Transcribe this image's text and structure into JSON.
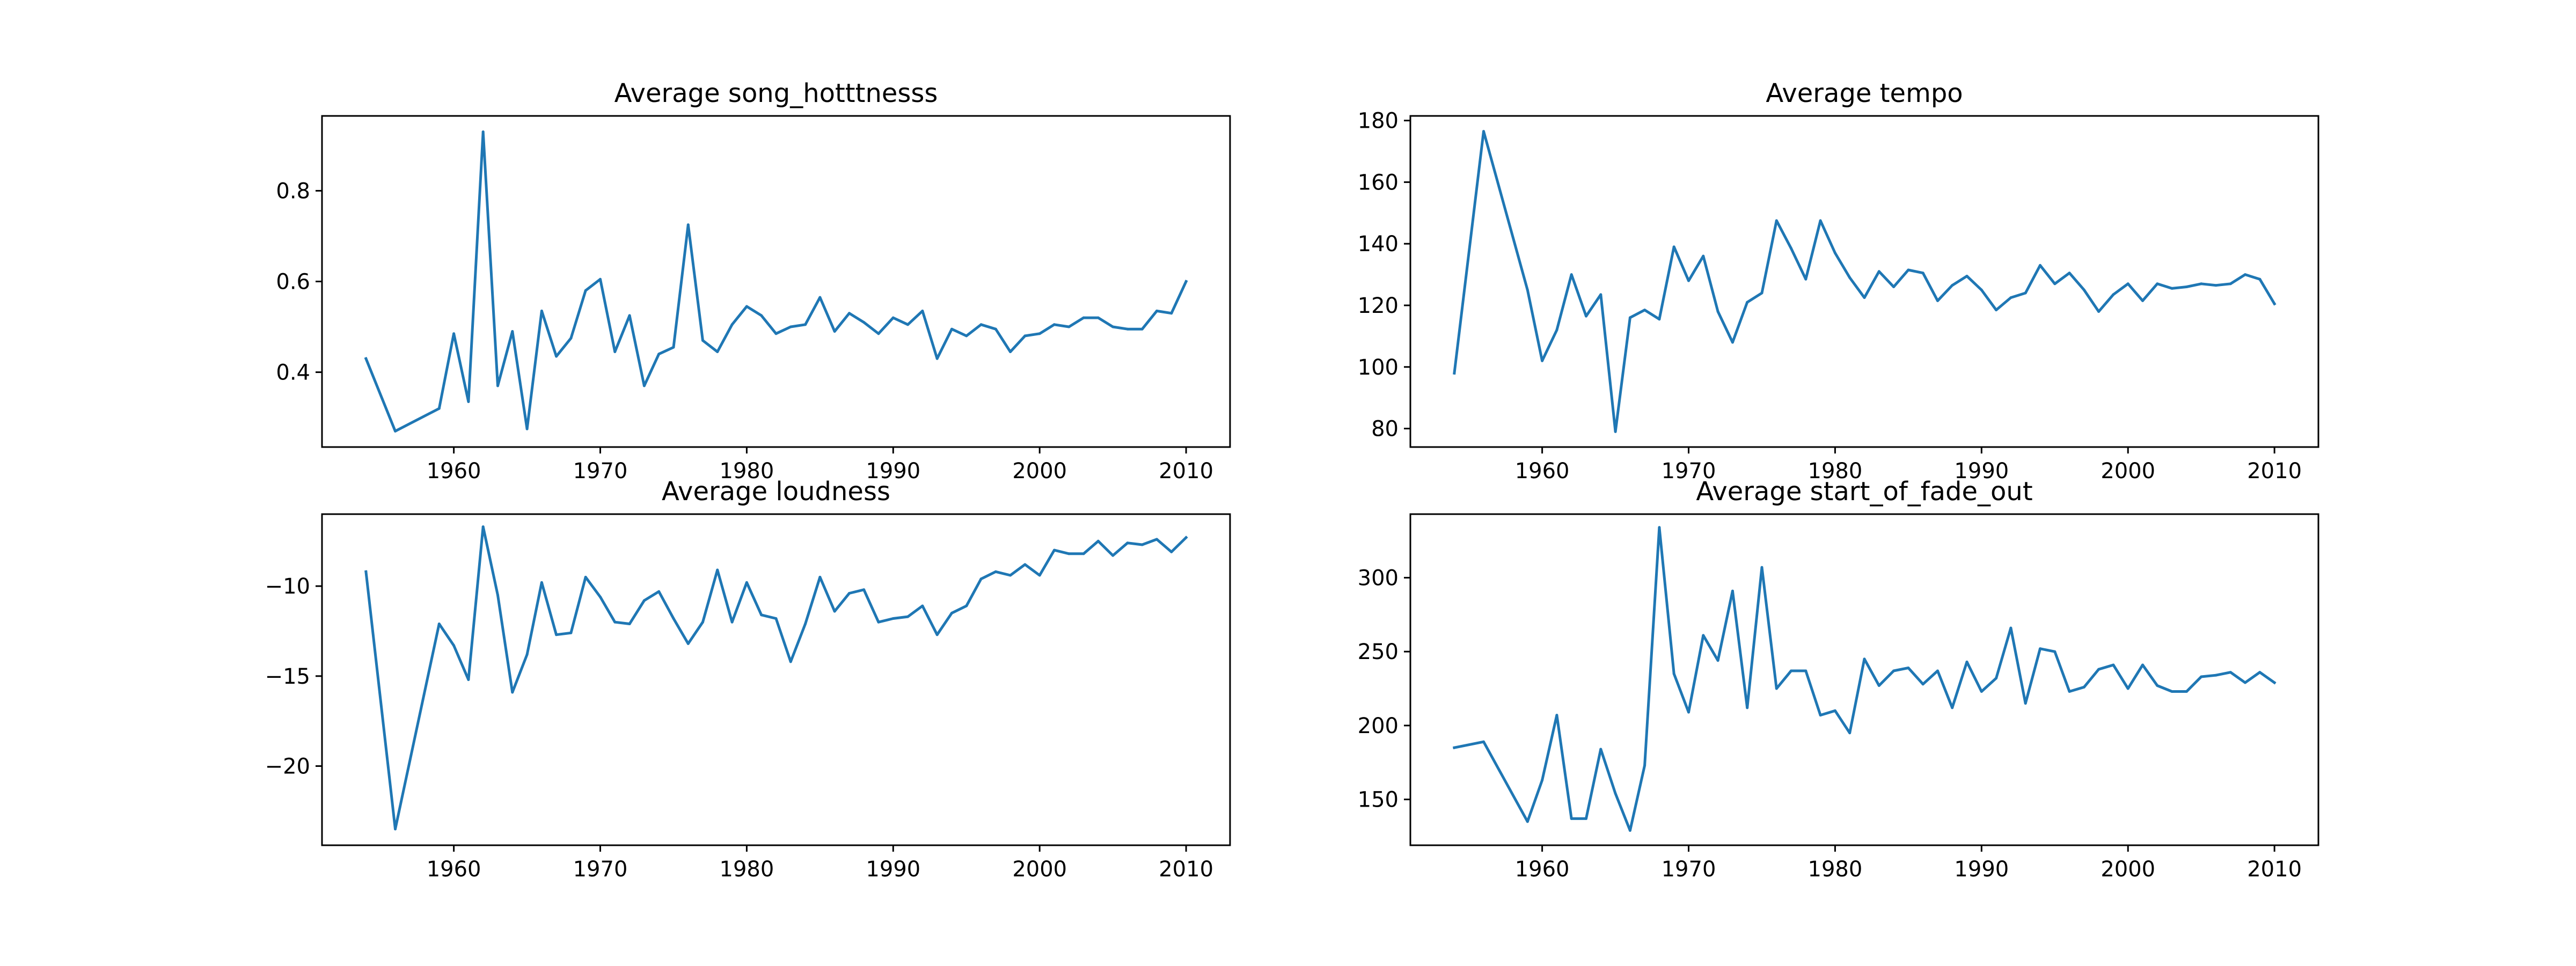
{
  "chart_data": [
    {
      "type": "line",
      "title": "Average song_hotttnesss",
      "xlabel": "",
      "ylabel": "",
      "xlim": [
        1951,
        2013
      ],
      "ylim": [
        0.235,
        0.965
      ],
      "xticks": [
        1960,
        1970,
        1980,
        1990,
        2000,
        2010
      ],
      "yticks": [
        0.4,
        0.6,
        0.8
      ],
      "yticklabels": [
        "0.4",
        "0.6",
        "0.8"
      ],
      "grid": false,
      "color": "#1f77b4",
      "x": [
        1954,
        1956,
        1959,
        1960,
        1961,
        1962,
        1963,
        1964,
        1965,
        1966,
        1967,
        1968,
        1969,
        1970,
        1971,
        1972,
        1973,
        1974,
        1975,
        1976,
        1977,
        1978,
        1979,
        1980,
        1981,
        1982,
        1983,
        1984,
        1985,
        1986,
        1987,
        1988,
        1989,
        1990,
        1991,
        1992,
        1993,
        1994,
        1995,
        1996,
        1997,
        1998,
        1999,
        2000,
        2001,
        2002,
        2003,
        2004,
        2005,
        2006,
        2007,
        2008,
        2009,
        2010
      ],
      "y": [
        0.43,
        0.27,
        0.32,
        0.485,
        0.335,
        0.93,
        0.37,
        0.49,
        0.275,
        0.535,
        0.435,
        0.475,
        0.58,
        0.605,
        0.445,
        0.525,
        0.37,
        0.44,
        0.455,
        0.725,
        0.47,
        0.445,
        0.505,
        0.545,
        0.525,
        0.485,
        0.5,
        0.505,
        0.565,
        0.49,
        0.53,
        0.51,
        0.485,
        0.52,
        0.505,
        0.535,
        0.43,
        0.495,
        0.48,
        0.505,
        0.495,
        0.445,
        0.48,
        0.485,
        0.505,
        0.5,
        0.52,
        0.52,
        0.5,
        0.495,
        0.495,
        0.535,
        0.53,
        0.6
      ]
    },
    {
      "type": "line",
      "title": "Average tempo",
      "xlabel": "",
      "ylabel": "",
      "xlim": [
        1951,
        2013
      ],
      "ylim": [
        74,
        181.5
      ],
      "xticks": [
        1960,
        1970,
        1980,
        1990,
        2000,
        2010
      ],
      "yticks": [
        80,
        100,
        120,
        140,
        160,
        180
      ],
      "yticklabels": [
        "80",
        "100",
        "120",
        "140",
        "160",
        "180"
      ],
      "grid": false,
      "color": "#1f77b4",
      "x": [
        1954,
        1956,
        1959,
        1960,
        1961,
        1962,
        1963,
        1964,
        1965,
        1966,
        1967,
        1968,
        1969,
        1970,
        1971,
        1972,
        1973,
        1974,
        1975,
        1976,
        1977,
        1978,
        1979,
        1980,
        1981,
        1982,
        1983,
        1984,
        1985,
        1986,
        1987,
        1988,
        1989,
        1990,
        1991,
        1992,
        1993,
        1994,
        1995,
        1996,
        1997,
        1998,
        1999,
        2000,
        2001,
        2002,
        2003,
        2004,
        2005,
        2006,
        2007,
        2008,
        2009,
        2010
      ],
      "y": [
        98,
        176.5,
        125,
        102,
        112,
        130,
        116.5,
        123.5,
        79,
        116,
        118.5,
        115.5,
        139,
        128,
        136,
        118,
        108,
        121,
        124,
        147.5,
        138.5,
        128.5,
        147.5,
        137,
        129,
        122.5,
        131,
        126,
        131.5,
        130.5,
        121.5,
        126.5,
        129.5,
        125,
        118.5,
        122.5,
        124,
        133,
        127,
        130.5,
        125,
        118,
        123.5,
        127,
        121.5,
        127,
        125.5,
        126,
        127,
        126.5,
        127,
        130,
        128.5,
        120.5
      ]
    },
    {
      "type": "line",
      "title": "Average loudness",
      "xlabel": "",
      "ylabel": "",
      "xlim": [
        1951,
        2013
      ],
      "ylim": [
        -24.4,
        -6.0
      ],
      "xticks": [
        1960,
        1970,
        1980,
        1990,
        2000,
        2010
      ],
      "yticks": [
        -20,
        -15,
        -10
      ],
      "yticklabels": [
        "−20",
        "−15",
        "−10"
      ],
      "grid": false,
      "color": "#1f77b4",
      "x": [
        1954,
        1956,
        1959,
        1960,
        1961,
        1962,
        1963,
        1964,
        1965,
        1966,
        1967,
        1968,
        1969,
        1970,
        1971,
        1972,
        1973,
        1974,
        1975,
        1976,
        1977,
        1978,
        1979,
        1980,
        1981,
        1982,
        1983,
        1984,
        1985,
        1986,
        1987,
        1988,
        1989,
        1990,
        1991,
        1992,
        1993,
        1994,
        1995,
        1996,
        1997,
        1998,
        1999,
        2000,
        2001,
        2002,
        2003,
        2004,
        2005,
        2006,
        2007,
        2008,
        2009,
        2010
      ],
      "y": [
        -9.2,
        -23.5,
        -12.1,
        -13.3,
        -15.2,
        -6.7,
        -10.5,
        -15.9,
        -13.8,
        -9.8,
        -12.7,
        -12.6,
        -9.5,
        -10.6,
        -12.0,
        -12.1,
        -10.8,
        -10.3,
        -11.8,
        -13.2,
        -12.0,
        -9.1,
        -12.0,
        -9.8,
        -11.6,
        -11.8,
        -14.2,
        -12.1,
        -9.5,
        -11.4,
        -10.4,
        -10.2,
        -12.0,
        -11.8,
        -11.7,
        -11.1,
        -12.7,
        -11.5,
        -11.1,
        -9.6,
        -9.2,
        -9.4,
        -8.8,
        -9.4,
        -8.0,
        -8.2,
        -8.2,
        -7.5,
        -8.3,
        -7.6,
        -7.7,
        -7.4,
        -8.1,
        -7.3
      ]
    },
    {
      "type": "line",
      "title": "Average start_of_fade_out",
      "xlabel": "",
      "ylabel": "",
      "xlim": [
        1951,
        2013
      ],
      "ylim": [
        119,
        343
      ],
      "xticks": [
        1960,
        1970,
        1980,
        1990,
        2000,
        2010
      ],
      "yticks": [
        150,
        200,
        250,
        300
      ],
      "yticklabels": [
        "150",
        "200",
        "250",
        "300"
      ],
      "grid": false,
      "color": "#1f77b4",
      "x": [
        1954,
        1956,
        1959,
        1960,
        1961,
        1962,
        1963,
        1964,
        1965,
        1966,
        1967,
        1968,
        1969,
        1970,
        1971,
        1972,
        1973,
        1974,
        1975,
        1976,
        1977,
        1978,
        1979,
        1980,
        1981,
        1982,
        1983,
        1984,
        1985,
        1986,
        1987,
        1988,
        1989,
        1990,
        1991,
        1992,
        1993,
        1994,
        1995,
        1996,
        1997,
        1998,
        1999,
        2000,
        2001,
        2002,
        2003,
        2004,
        2005,
        2006,
        2007,
        2008,
        2009,
        2010
      ],
      "y": [
        185,
        189,
        135,
        163,
        207,
        137,
        137,
        184,
        154,
        129,
        173,
        334,
        235,
        209,
        261,
        244,
        291,
        212,
        307,
        225,
        237,
        237,
        207,
        210,
        195,
        245,
        227,
        237,
        239,
        228,
        237,
        212,
        243,
        223,
        232,
        266,
        215,
        252,
        250,
        223,
        226,
        238,
        241,
        225,
        241,
        227,
        223,
        223,
        233,
        234,
        236,
        229,
        236,
        229
      ]
    }
  ]
}
